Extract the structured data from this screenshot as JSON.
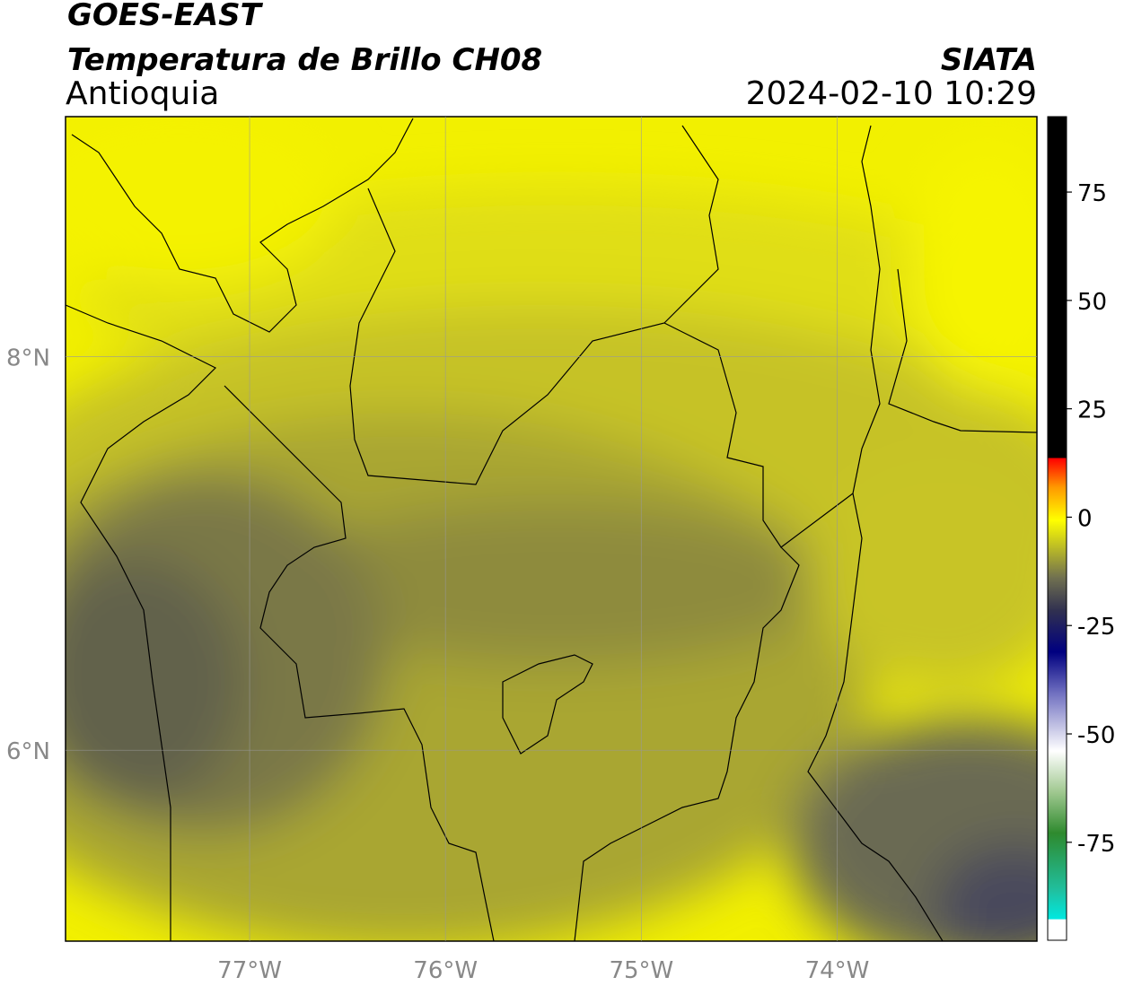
{
  "header": {
    "satellite": "GOES-EAST",
    "product": "Temperatura de Brillo CH08",
    "region": "Antioquia",
    "agency": "SIATA",
    "datetime": "2024-02-10 10:29"
  },
  "map": {
    "lonlim": [
      -77.94,
      -72.98
    ],
    "latlim": [
      5.03,
      9.22
    ],
    "lon_ticks": [
      {
        "value": -77,
        "label": "77°W"
      },
      {
        "value": -76,
        "label": "76°W"
      },
      {
        "value": -75,
        "label": "75°W"
      },
      {
        "value": -74,
        "label": "74°W"
      }
    ],
    "lat_ticks": [
      {
        "value": 8,
        "label": "8°N"
      },
      {
        "value": 6,
        "label": "6°N"
      }
    ]
  },
  "colorbar": {
    "lim": [
      -97.6,
      92.4
    ],
    "ticks": [
      75,
      50,
      25,
      0,
      -25,
      -50,
      -75
    ]
  }
}
